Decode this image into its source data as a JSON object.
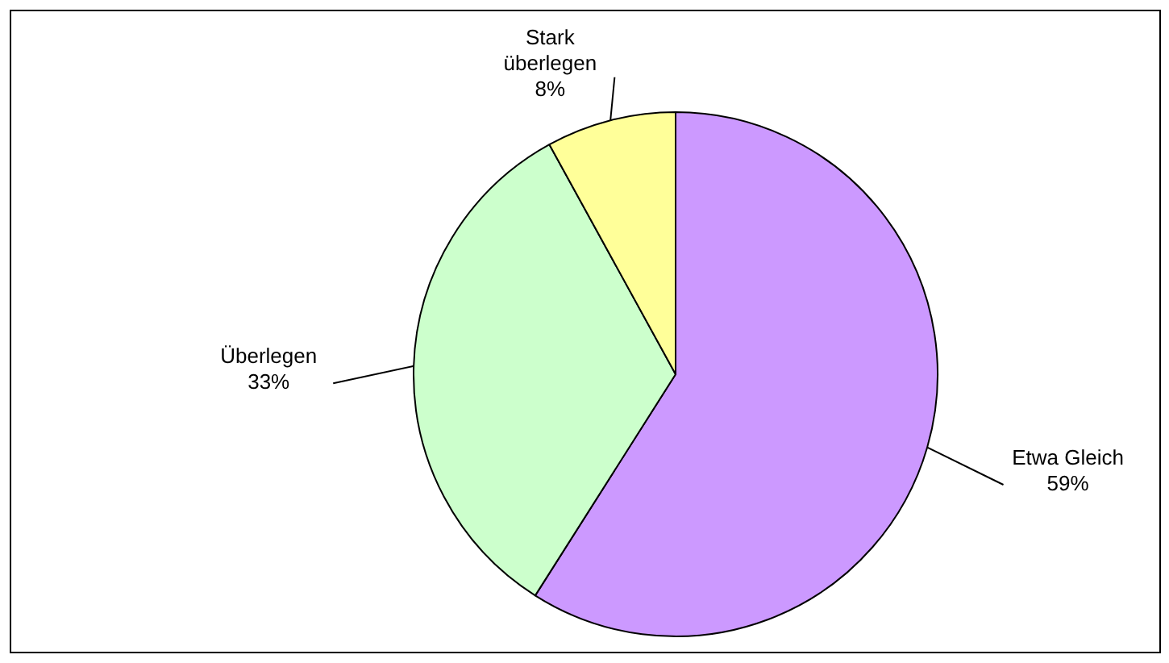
{
  "chart_data": {
    "type": "pie",
    "categories": [
      "Etwa Gleich",
      "Überlegen",
      "Stark überlegen"
    ],
    "values": [
      59,
      33,
      8
    ],
    "colors": [
      "#cc99ff",
      "#ccffcc",
      "#ffff99"
    ],
    "value_labels": [
      "59%",
      "33%",
      "8%"
    ],
    "legend": false
  }
}
